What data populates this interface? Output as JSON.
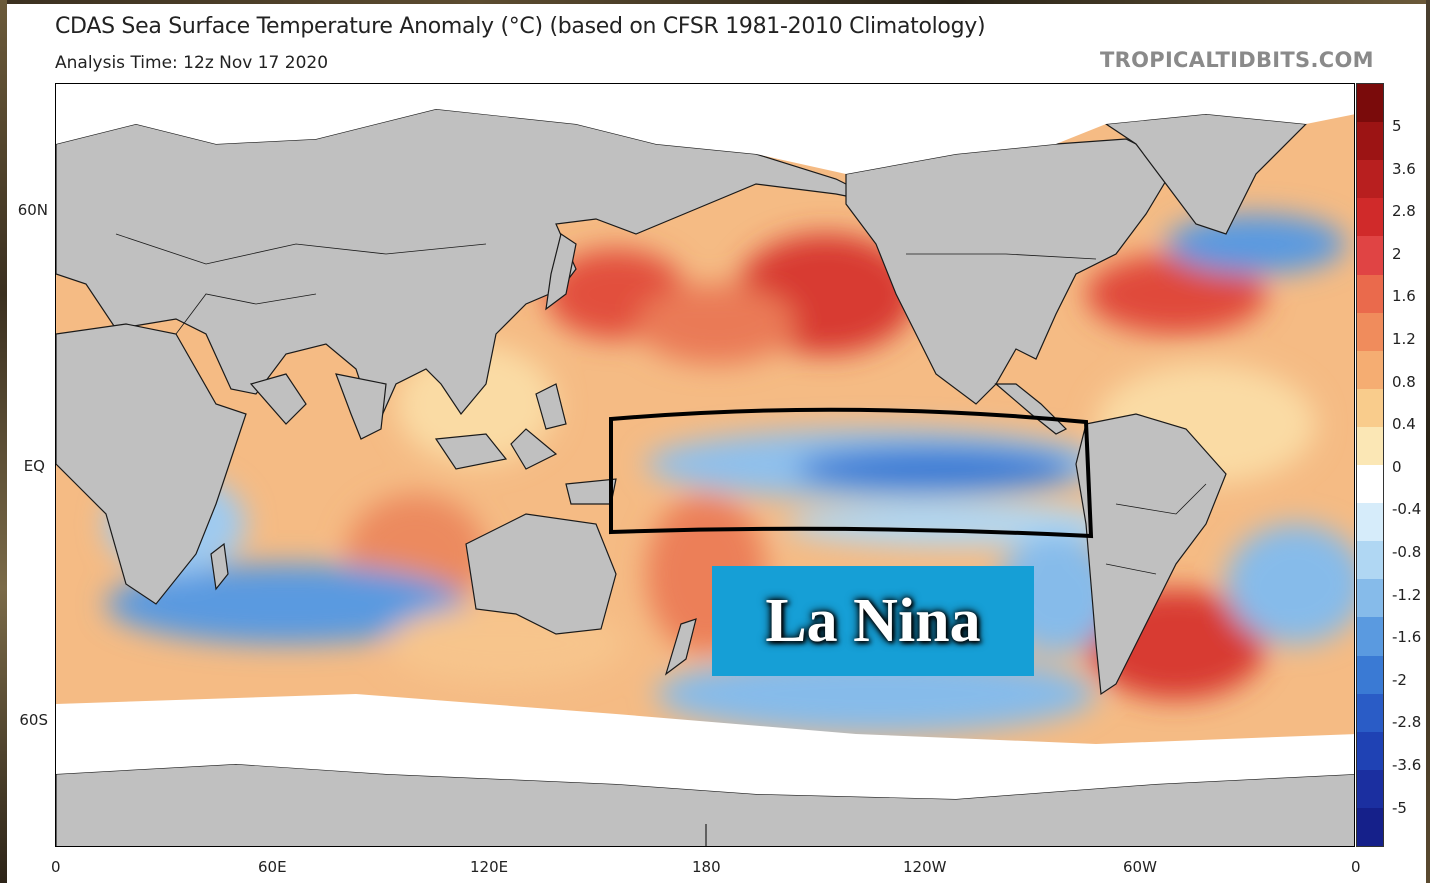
{
  "header": {
    "title": "CDAS Sea Surface Temperature Anomaly (°C) (based on CFSR 1981-2010 Climatology)",
    "analysis_time": "Analysis Time: 12z Nov 17 2020",
    "watermark": "TROPICALTIDBITS.COM"
  },
  "axes": {
    "latitude_labels": [
      "60N",
      "EQ",
      "60S"
    ],
    "longitude_labels": [
      "0",
      "60E",
      "120E",
      "180",
      "120W",
      "60W",
      "0"
    ]
  },
  "colorbar": {
    "labels": [
      "5",
      "3.6",
      "2.8",
      "2",
      "1.6",
      "1.2",
      "0.8",
      "0.4",
      "0",
      "-0.4",
      "-0.8",
      "-1.2",
      "-1.6",
      "-2",
      "-2.8",
      "-3.6",
      "-5"
    ],
    "colors": [
      "#7a0b0b",
      "#9c1414",
      "#b81f1f",
      "#d02a2a",
      "#e04444",
      "#ea6a4c",
      "#f08c5c",
      "#f5ad72",
      "#f9cc8c",
      "#fbe7b5",
      "#ffffff",
      "#d6ecfa",
      "#b0d7f3",
      "#86bbea",
      "#5a9ae0",
      "#3a7ad4",
      "#2a5cc6",
      "#1f42b4",
      "#1b2fa0",
      "#15208a"
    ]
  },
  "annotation": {
    "label": "La Nina",
    "box_color": "#169fd6"
  },
  "map_colors": {
    "land": "#c0c0c0",
    "sea_ice": "#ffffff",
    "warm": "#f3b27a",
    "cold": "#3a7ad4"
  }
}
